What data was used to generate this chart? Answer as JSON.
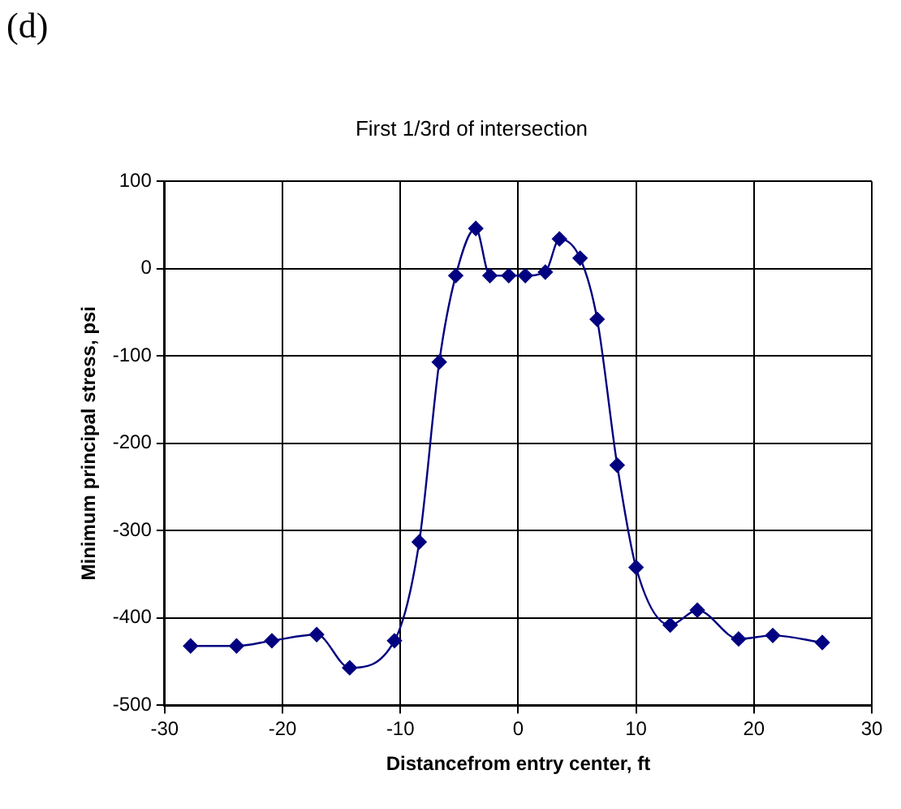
{
  "chart_data": {
    "type": "line",
    "title": "First 1/3rd of intersection",
    "xlabel": "Distancefrom entry center, ft",
    "ylabel": "Minimum principal stress, psi",
    "annotations": [
      "(d)"
    ],
    "series": [
      {
        "color": "#000080",
        "x": [
          -27.8,
          -23.9,
          -20.9,
          -17.1,
          -14.3,
          -10.5,
          -8.4,
          -6.7,
          -5.3,
          -3.6,
          -2.4,
          -0.8,
          0.6,
          2.3,
          3.5,
          5.25,
          6.7,
          8.4,
          10.0,
          12.9,
          15.2,
          18.7,
          21.6,
          25.8
        ],
        "values": [
          -432,
          -432,
          -426,
          -419,
          -457,
          -426,
          -313,
          -107,
          -8,
          46,
          -8,
          -8,
          -8,
          -4,
          34,
          12,
          -58,
          -225,
          -342,
          -408,
          -391,
          -424,
          -420,
          -428
        ]
      }
    ],
    "xlim": [
      -30,
      30
    ],
    "xticks": [
      -30,
      -20,
      -10,
      0,
      10,
      20,
      30
    ],
    "ylim": [
      -500,
      100
    ],
    "yticks": [
      -500,
      -400,
      -300,
      -200,
      -100,
      0,
      100
    ],
    "grid": true,
    "legend": false,
    "marker": "diamond",
    "line_style": "solid"
  }
}
